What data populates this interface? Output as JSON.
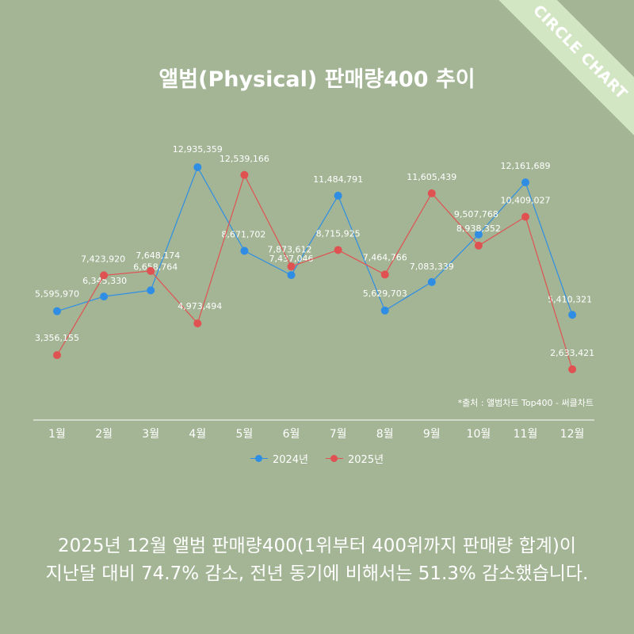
{
  "badge": "CIRCLE CHART",
  "source_note": "*출처 : 앨범차트 Top400 - 써클차트",
  "summary": {
    "line1": "2025년 12월 앨범 판매량400(1위부터 400위까지 판매량 합계)이",
    "line2": "지난달 대비 74.7% 감소, 전년 동기에 비해서는 51.3% 감소했습니다."
  },
  "chart_data": {
    "type": "line",
    "title": "앨범(Physical) 판매량400 추이",
    "categories": [
      "1월",
      "2월",
      "3월",
      "4월",
      "5월",
      "6월",
      "7월",
      "8월",
      "9월",
      "10월",
      "11월",
      "12월"
    ],
    "series": [
      {
        "name": "2024년",
        "color": "#2f8ee4",
        "values": [
          5595970,
          6345330,
          6658764,
          12935359,
          8671702,
          7437046,
          11484791,
          5629703,
          7083339,
          9507768,
          12161689,
          5410321
        ],
        "labels": [
          "5,595,970",
          "6,345,330",
          "6,658,764",
          "12,935,359",
          "8,671,702",
          "7,437,046",
          "11,484,791",
          "5,629,703",
          "7,083,339",
          "9,507,768",
          "12,161,689",
          "5,410,321"
        ]
      },
      {
        "name": "2025년",
        "color": "#e05252",
        "values": [
          3356155,
          7423920,
          7648174,
          4973494,
          12539166,
          7873612,
          8715925,
          7464766,
          11605439,
          8938352,
          10409027,
          2633421
        ],
        "labels": [
          "3,356,155",
          "7,423,920",
          "7,648,174",
          "4,973,494",
          "12,539,166",
          "7,873,612",
          "8,715,925",
          "7,464,766",
          "11,605,439",
          "8,938,352",
          "10,409,027",
          "2,633,421"
        ]
      }
    ],
    "xlabel": "",
    "ylabel": "",
    "grid": false,
    "legend": "bottom"
  }
}
